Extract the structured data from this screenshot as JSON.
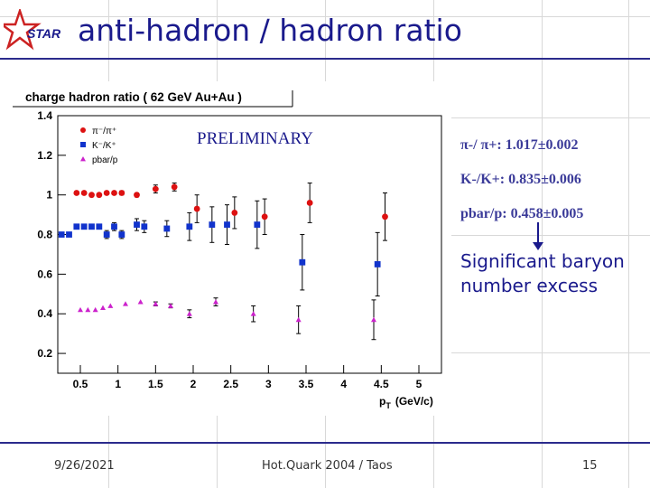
{
  "slide": {
    "title": "anti-hadron / hadron ratio",
    "logo_text": "STAR",
    "annotations": {
      "pion": "π-/ π+: 1.017±0.002",
      "kaon": "K-/K+: 0.835±0.006",
      "proton": "pbar/p: 0.458±0.005",
      "note_line1": "Significant baryon",
      "note_line2": "number excess"
    },
    "footer": {
      "date": "9/26/2021",
      "center": "Hot.Quark 2004 / Taos",
      "page": "15"
    },
    "colors": {
      "title": "#1a1a8c",
      "rule": "#2b2b8c",
      "pion": "#dd1111",
      "kaon": "#1133cc",
      "proton": "#cc22cc"
    }
  },
  "chart_data": {
    "type": "scatter",
    "title": "charge hadron ratio ( 62 GeV Au+Au )",
    "watermark": "PRELIMINARY",
    "xlabel": "p_T (GeV/c)",
    "xlabel_main": "p",
    "xlabel_sub": "T",
    "xlabel_unit": "(GeV/c)",
    "ylabel": "",
    "xlim": [
      0.2,
      5.3
    ],
    "ylim": [
      0.1,
      1.4
    ],
    "xticks": [
      "0.5",
      "1",
      "1.5",
      "2",
      "2.5",
      "3",
      "3.5",
      "4",
      "4.5",
      "5"
    ],
    "yticks": [
      "0.2",
      "0.4",
      "0.6",
      "0.8",
      "1",
      "1.2",
      "1.4"
    ],
    "legend_position": "top-left",
    "series": [
      {
        "name": "π⁻/π⁺",
        "marker": "circle",
        "color": "#dd1111",
        "x": [
          0.45,
          0.55,
          0.65,
          0.75,
          0.85,
          0.95,
          1.05,
          1.25,
          1.5,
          1.75,
          2.05,
          2.55,
          2.95,
          3.55,
          4.55
        ],
        "y": [
          1.01,
          1.01,
          1.0,
          1.0,
          1.01,
          1.01,
          1.01,
          1.0,
          1.03,
          1.04,
          0.93,
          0.91,
          0.89,
          0.96,
          0.89
        ],
        "err": [
          0.005,
          0.005,
          0.005,
          0.005,
          0.005,
          0.005,
          0.01,
          0.01,
          0.02,
          0.02,
          0.07,
          0.08,
          0.09,
          0.1,
          0.12
        ]
      },
      {
        "name": "K⁻/K⁺",
        "marker": "square",
        "color": "#1133cc",
        "x": [
          0.25,
          0.35,
          0.45,
          0.55,
          0.65,
          0.75,
          0.85,
          0.95,
          1.05,
          1.25,
          1.35,
          1.65,
          1.95,
          2.25,
          2.45,
          2.85,
          3.45,
          4.45
        ],
        "y": [
          0.8,
          0.8,
          0.84,
          0.84,
          0.84,
          0.84,
          0.8,
          0.84,
          0.8,
          0.85,
          0.84,
          0.83,
          0.84,
          0.85,
          0.85,
          0.85,
          0.66,
          0.65
        ],
        "err": [
          0.005,
          0.005,
          0.01,
          0.01,
          0.01,
          0.01,
          0.02,
          0.02,
          0.02,
          0.03,
          0.03,
          0.04,
          0.07,
          0.09,
          0.1,
          0.12,
          0.14,
          0.16
        ]
      },
      {
        "name": "pbar/p",
        "marker": "triangle",
        "color": "#cc22cc",
        "x": [
          0.5,
          0.6,
          0.7,
          0.8,
          0.9,
          1.1,
          1.3,
          1.5,
          1.7,
          1.95,
          2.3,
          2.8,
          3.4,
          4.4
        ],
        "y": [
          0.42,
          0.42,
          0.42,
          0.43,
          0.44,
          0.45,
          0.46,
          0.45,
          0.44,
          0.4,
          0.46,
          0.4,
          0.37,
          0.37
        ],
        "err": [
          0.005,
          0.005,
          0.005,
          0.005,
          0.005,
          0.005,
          0.005,
          0.01,
          0.01,
          0.02,
          0.02,
          0.04,
          0.07,
          0.1
        ]
      }
    ]
  }
}
